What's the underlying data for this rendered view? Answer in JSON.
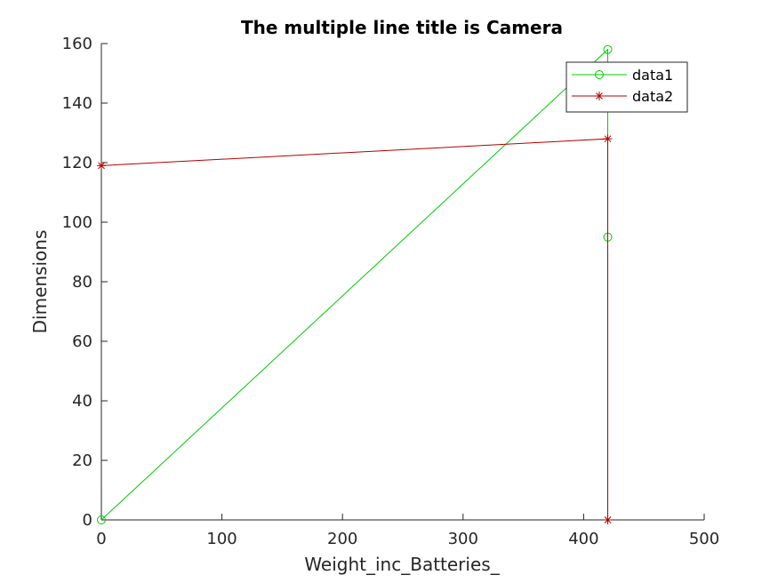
{
  "chart_data": {
    "type": "line",
    "title": "The multiple line title is Camera",
    "xlabel": "Weight_inc_Batteries_",
    "ylabel": "Dimensions",
    "xlim": [
      0,
      500
    ],
    "ylim": [
      0,
      160
    ],
    "xticks": [
      0,
      100,
      200,
      300,
      400,
      500
    ],
    "yticks": [
      0,
      20,
      40,
      60,
      80,
      100,
      120,
      140,
      160
    ],
    "xtick_labels": [
      "0",
      "100",
      "200",
      "300",
      "400",
      "500"
    ],
    "ytick_labels": [
      "0",
      "20",
      "40",
      "60",
      "80",
      "100",
      "120",
      "140",
      "160"
    ],
    "grid": false,
    "legend_position": "top-right",
    "series": [
      {
        "name": "data1",
        "color": "#00cc00",
        "marker": "circle",
        "points": [
          [
            0,
            0
          ],
          [
            420,
            158
          ],
          [
            420,
            95
          ]
        ]
      },
      {
        "name": "data2",
        "color": "#b30000",
        "marker": "asterisk",
        "points": [
          [
            0,
            119
          ],
          [
            420,
            128
          ],
          [
            420,
            0
          ]
        ]
      }
    ]
  }
}
